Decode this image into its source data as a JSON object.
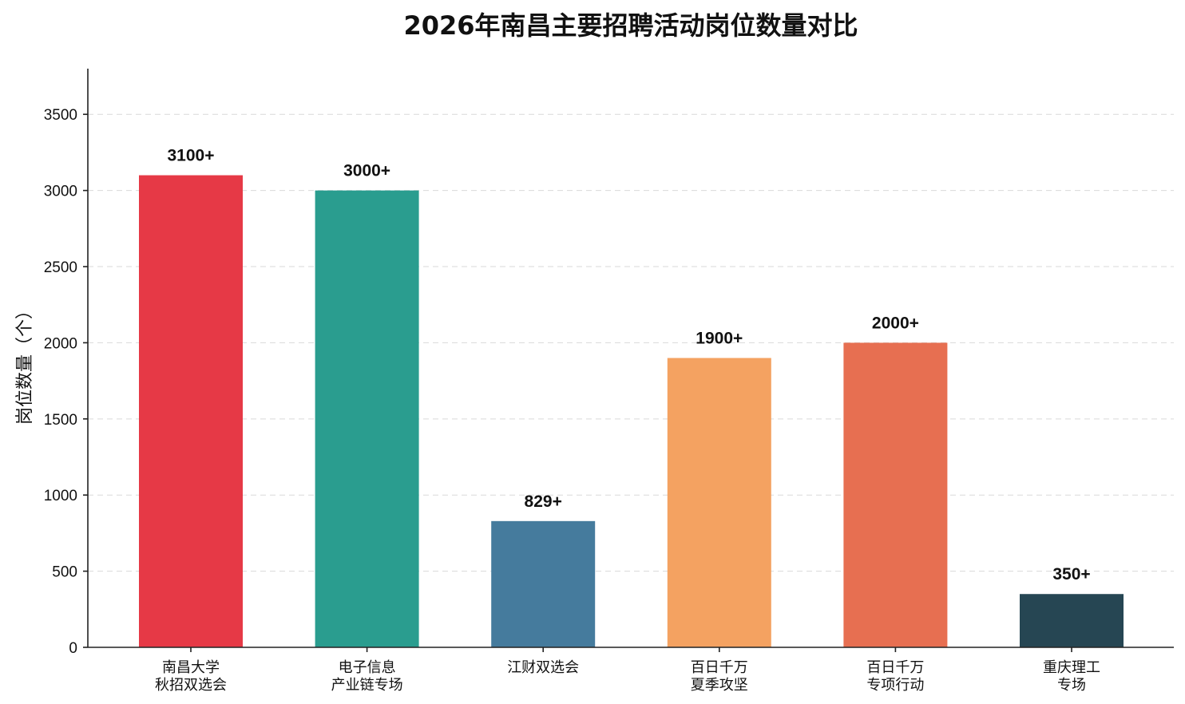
{
  "chart_data": {
    "type": "bar",
    "title": "2026年南昌主要招聘活动岗位数量对比",
    "ylabel": "岗位数量（个）",
    "xlabel": "",
    "ylim": [
      0,
      3800
    ],
    "yticks": [
      0,
      500,
      1000,
      1500,
      2000,
      2500,
      3000,
      3500
    ],
    "grid": true,
    "categories": [
      [
        "南昌大学",
        "秋招双选会"
      ],
      [
        "电子信息",
        "产业链专场"
      ],
      [
        "江财双选会"
      ],
      [
        "百日千万",
        "夏季攻坚"
      ],
      [
        "百日千万",
        "专项行动"
      ],
      [
        "重庆理工",
        "专场"
      ]
    ],
    "values": [
      3100,
      3000,
      829,
      1900,
      2000,
      350
    ],
    "data_labels": [
      "3100+",
      "3000+",
      "829+",
      "1900+",
      "2000+",
      "350+"
    ],
    "colors": [
      "#e63946",
      "#2a9d8f",
      "#457b9d",
      "#f4a261",
      "#e76f51",
      "#264653"
    ]
  }
}
